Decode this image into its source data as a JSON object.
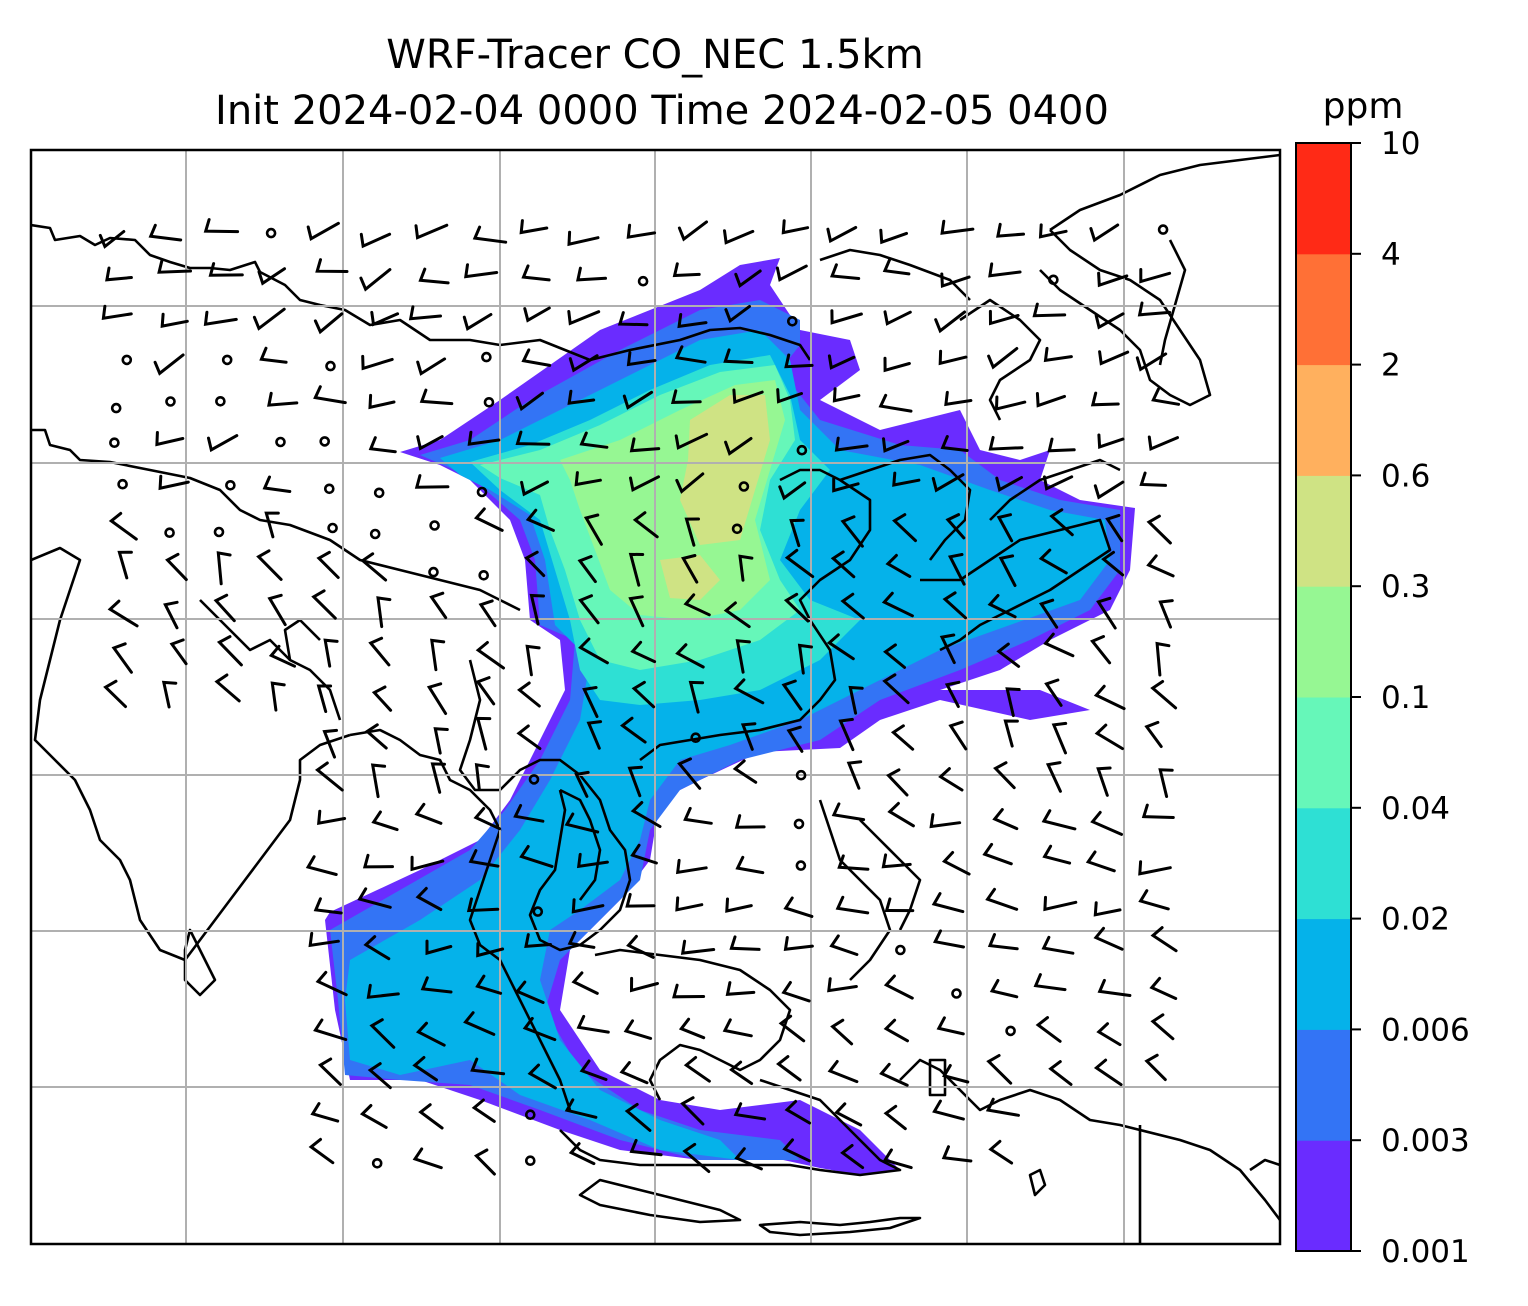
{
  "title": {
    "line1": "WRF-Tracer CO_NEC 1.5km",
    "line2": "Init 2024-02-04 0000 Time 2024-02-05 0400"
  },
  "colorbar": {
    "unit": "ppm",
    "levels": [
      "0.001",
      "0.003",
      "0.006",
      "0.02",
      "0.04",
      "0.1",
      "0.3",
      "0.6",
      "2",
      "4",
      "10"
    ],
    "colors": [
      "#6a2cff",
      "#3374f5",
      "#05b2ea",
      "#2ee0d4",
      "#66f7b9",
      "#96f793",
      "#cfe384",
      "#ffb05e",
      "#ff7036",
      "#ff2a16"
    ]
  },
  "map": {
    "gridlines": true,
    "plume_colors": {
      "outer": "#6a2cff",
      "low": "#3374f5",
      "mid": "#05b2ea",
      "mid2": "#2ee0d4",
      "high": "#66f7b9",
      "higher": "#96f793",
      "peak": "#cfe384"
    },
    "wind_symbol": "wind-barbs",
    "calm_symbol": "calm-circle"
  }
}
